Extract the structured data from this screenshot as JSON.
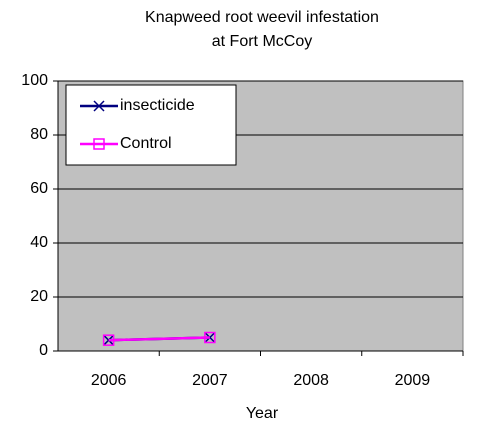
{
  "chart_data": {
    "type": "line",
    "title": [
      "Knapweed root weevil infestation",
      "at Fort McCoy"
    ],
    "xlabel": "Year",
    "categories": [
      "2006",
      "2007",
      "2008",
      "2009"
    ],
    "series": [
      {
        "name": "insecticide",
        "color": "#000080",
        "marker": "x",
        "values": [
          4,
          5,
          null,
          null
        ]
      },
      {
        "name": "Control",
        "color": "#ff00ff",
        "marker": "square",
        "values": [
          4,
          5,
          null,
          null
        ]
      }
    ],
    "ylim": [
      0,
      100
    ],
    "yticks": [
      0,
      20,
      40,
      60,
      80,
      100
    ],
    "grid": true,
    "legend": "upper left"
  }
}
